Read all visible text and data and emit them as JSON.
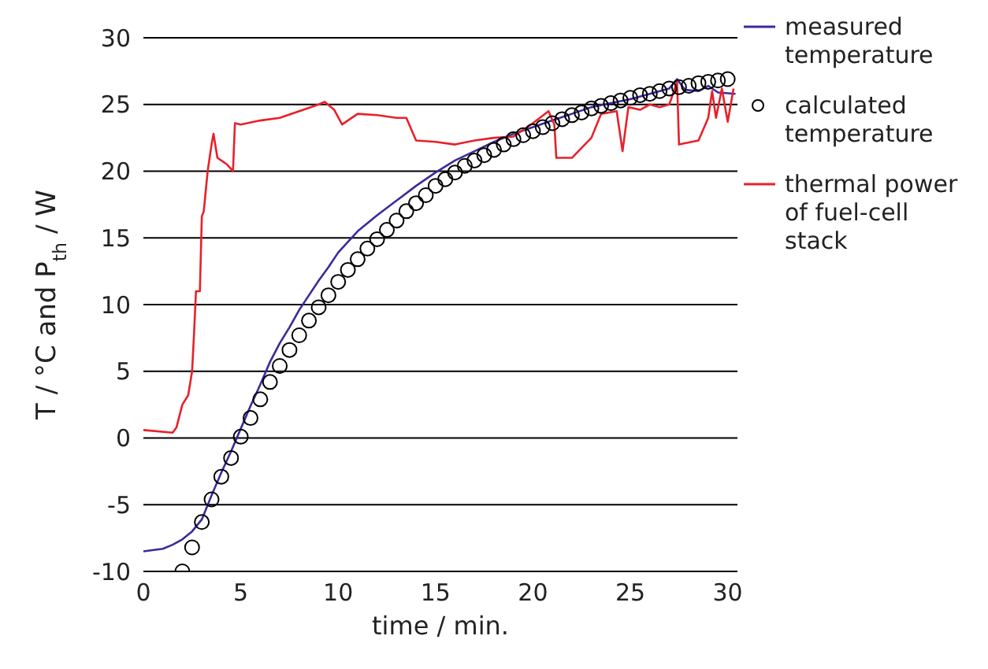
{
  "chart_data": {
    "type": "line",
    "xlabel": "time / min.",
    "ylabel": "T / °C and P$_{th}$ / W",
    "xlim": [
      0,
      30.5
    ],
    "xticks": [
      0,
      5,
      10,
      15,
      20,
      25,
      30
    ],
    "ylim": [
      -10,
      30
    ],
    "yticks": [
      -10,
      -5,
      0,
      5,
      10,
      15,
      20,
      25,
      30
    ],
    "grid": "y",
    "legend": "right",
    "series": [
      {
        "name": "measured temperature",
        "marker": "none",
        "color": "#3b2a9c",
        "x": [
          0,
          1,
          1.5,
          2,
          2.5,
          3,
          3.5,
          4,
          4.5,
          5,
          5.5,
          6,
          6.5,
          7,
          7.5,
          8,
          8.5,
          9,
          9.5,
          10,
          10.5,
          11,
          12,
          13,
          14,
          15,
          16,
          17,
          18,
          19,
          20,
          21,
          22,
          23,
          24,
          25,
          26,
          27,
          27.4,
          27.8,
          28.5,
          29,
          29.5,
          30.4
        ],
        "values": [
          -8.5,
          -8.3,
          -8.0,
          -7.6,
          -7.0,
          -6.1,
          -4.3,
          -2.6,
          -1.0,
          0.7,
          2.4,
          4.0,
          5.7,
          7.1,
          8.3,
          9.6,
          10.7,
          11.8,
          12.8,
          13.9,
          14.7,
          15.5,
          16.7,
          17.8,
          18.9,
          19.9,
          20.8,
          21.5,
          22.2,
          22.8,
          23.3,
          23.8,
          24.3,
          24.8,
          25.1,
          25.4,
          25.8,
          26.2,
          26.9,
          26.1,
          26.0,
          26.4,
          25.9,
          25.8
        ]
      },
      {
        "name": "calculated temperature",
        "type": "scatter",
        "marker": "circle",
        "color": "#000000",
        "x": [
          2,
          2.5,
          3,
          3.5,
          4,
          4.5,
          5,
          5.5,
          6,
          6.5,
          7,
          7.5,
          8,
          8.5,
          9,
          9.5,
          10,
          10.5,
          11,
          11.5,
          12,
          12.5,
          13,
          13.5,
          14,
          14.5,
          15,
          15.5,
          16,
          16.5,
          17,
          17.5,
          18,
          18.5,
          19,
          19.5,
          20,
          20.5,
          21,
          21.5,
          22,
          22.5,
          23,
          23.5,
          24,
          24.5,
          25,
          25.5,
          26,
          26.5,
          27,
          27.5,
          28,
          28.5,
          29,
          29.5,
          30
        ],
        "values": [
          -10,
          -8.2,
          -6.3,
          -4.6,
          -2.9,
          -1.5,
          0.1,
          1.5,
          2.9,
          4.2,
          5.4,
          6.6,
          7.7,
          8.8,
          9.8,
          10.7,
          11.7,
          12.6,
          13.4,
          14.2,
          14.9,
          15.6,
          16.3,
          17.0,
          17.6,
          18.2,
          18.9,
          19.4,
          19.9,
          20.4,
          20.8,
          21.2,
          21.6,
          22.0,
          22.4,
          22.7,
          23.0,
          23.3,
          23.6,
          23.9,
          24.2,
          24.4,
          24.7,
          24.9,
          25.1,
          25.3,
          25.5,
          25.7,
          25.8,
          26.0,
          26.2,
          26.3,
          26.4,
          26.6,
          26.7,
          26.8,
          26.9
        ]
      },
      {
        "name": "thermal power of fuel-cell stack",
        "marker": "none",
        "color": "#e8202a",
        "x": [
          0,
          1.5,
          1.7,
          2,
          2.3,
          2.5,
          2.6,
          2.7,
          2.9,
          3.0,
          3.1,
          3.3,
          3.5,
          3.6,
          3.8,
          4,
          4.3,
          4.6,
          4.7,
          5,
          6,
          7,
          8,
          9,
          9.3,
          9.8,
          10.2,
          11,
          12,
          13,
          13.5,
          14,
          15,
          16,
          17,
          18,
          19,
          20,
          20.8,
          21.1,
          21.2,
          22,
          23,
          23.5,
          24.3,
          24.6,
          24.9,
          25.5,
          26,
          26.5,
          27,
          27.4,
          27.5,
          28.5,
          29,
          29.2,
          29.4,
          29.7,
          30,
          30.3
        ],
        "values": [
          0.6,
          0.4,
          0.8,
          2.5,
          3.2,
          5,
          7.8,
          11,
          11,
          16.6,
          17,
          20,
          22,
          22.8,
          21,
          20.8,
          20.5,
          20,
          23.6,
          23.5,
          23.8,
          24,
          24.5,
          25,
          25.2,
          24.6,
          23.5,
          24.3,
          24.2,
          24,
          24,
          22.3,
          22.2,
          22,
          22.3,
          22.5,
          22.6,
          23.6,
          24.5,
          23.5,
          21,
          21,
          22.5,
          24.3,
          24.5,
          21.5,
          24.8,
          24.6,
          25,
          24.8,
          25,
          26.7,
          22,
          22.3,
          24,
          26,
          24,
          26.2,
          23.7,
          26.2
        ]
      }
    ]
  }
}
